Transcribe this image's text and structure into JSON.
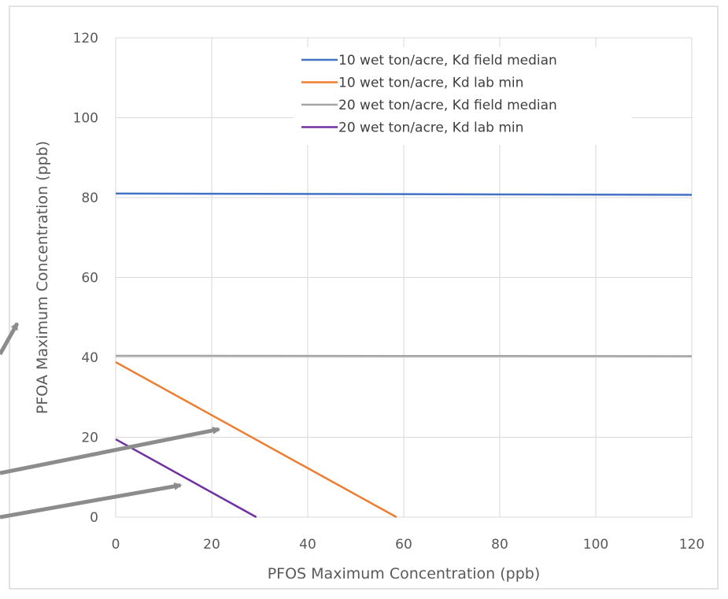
{
  "chart_data": {
    "type": "line",
    "title": "",
    "xlabel": "PFOS Maximum Concentration (ppb)",
    "ylabel": "PFOA Maximum Concentration (ppb)",
    "xlim": [
      0,
      120
    ],
    "ylim": [
      0,
      120
    ],
    "xticks": [
      0,
      20,
      40,
      60,
      80,
      100,
      120
    ],
    "yticks": [
      0,
      20,
      40,
      60,
      80,
      100,
      120
    ],
    "grid": true,
    "legend_position": "top-right",
    "series": [
      {
        "name": "10 wet ton/acre, Kd field median",
        "color": "#4472c4",
        "x": [
          0,
          120
        ],
        "y": [
          81,
          80.7
        ]
      },
      {
        "name": "10 wet ton/acre, Kd lab min",
        "color": "#ed7d31",
        "x": [
          0,
          58.5
        ],
        "y": [
          38.8,
          0
        ]
      },
      {
        "name": "20 wet ton/acre, Kd field median",
        "color": "#a5a5a5",
        "x": [
          0,
          120
        ],
        "y": [
          40.4,
          40.3
        ]
      },
      {
        "name": "20 wet ton/acre, Kd lab min",
        "color": "#7030a0",
        "x": [
          0,
          29.3
        ],
        "y": [
          19.5,
          0
        ]
      }
    ],
    "annotations": [
      {
        "type": "arrow",
        "color": "#8c8c8c",
        "points_to": [
          -20.5,
          48.5
        ]
      },
      {
        "type": "arrow",
        "color": "#8c8c8c",
        "points_to": [
          21.5,
          22
        ]
      },
      {
        "type": "arrow",
        "color": "#8c8c8c",
        "points_to": [
          13.5,
          8
        ]
      }
    ]
  }
}
